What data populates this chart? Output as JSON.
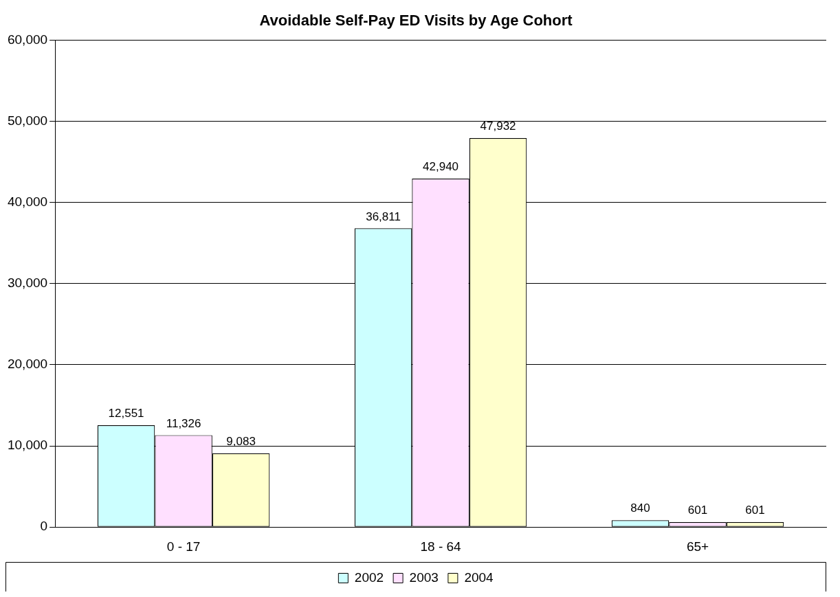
{
  "chart_data": {
    "type": "bar",
    "title": "Avoidable Self-Pay ED Visits by Age Cohort",
    "categories": [
      "0 - 17",
      "18 - 64",
      "65+"
    ],
    "series": [
      {
        "name": "2002",
        "color": "#ccffff",
        "values": [
          12551,
          36811,
          840
        ],
        "value_labels": [
          "12,551",
          "36,811",
          "840"
        ]
      },
      {
        "name": "2003",
        "color": "#ffe0ff",
        "values": [
          11326,
          42940,
          601
        ],
        "value_labels": [
          "11,326",
          "42,940",
          "601"
        ]
      },
      {
        "name": "2004",
        "color": "#ffffcc",
        "values": [
          9083,
          47932,
          601
        ],
        "value_labels": [
          "9,083",
          "47,932",
          "601"
        ]
      }
    ],
    "ylim": [
      0,
      60000
    ],
    "yticks": [
      0,
      {
        "value": 10000,
        "label": "10,000"
      },
      {
        "value": 20000,
        "label": "20,000"
      },
      {
        "value": 30000,
        "label": "30,000"
      },
      {
        "value": 40000,
        "label": "40,000"
      },
      {
        "value": 50000,
        "label": "50,000"
      },
      {
        "value": 60000,
        "label": "60,000"
      }
    ],
    "grid": "y",
    "legend": "bottom"
  }
}
